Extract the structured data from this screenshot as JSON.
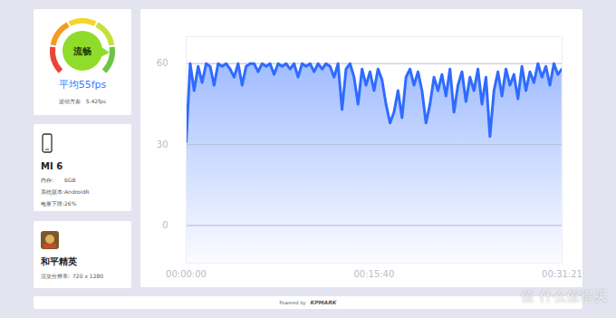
{
  "chart_data": {
    "type": "line",
    "color": "#2f6bff",
    "grid": true,
    "x": [
      0,
      20,
      40,
      60,
      80,
      100,
      120,
      140,
      160,
      180,
      200,
      220,
      240,
      260,
      280,
      300,
      320,
      340,
      360,
      380,
      400,
      420,
      440,
      460,
      480,
      500,
      520,
      540,
      560,
      580,
      600,
      620,
      640,
      660,
      680,
      700,
      720,
      740,
      760,
      780,
      800,
      820,
      840,
      860,
      880,
      900,
      920,
      940,
      960,
      980,
      1000,
      1020,
      1040,
      1060,
      1080,
      1100,
      1120,
      1140,
      1160,
      1180,
      1200,
      1220,
      1240,
      1260,
      1280,
      1300,
      1320,
      1340,
      1360,
      1380,
      1400,
      1420,
      1440,
      1460,
      1480,
      1500,
      1520,
      1540,
      1560,
      1580,
      1600,
      1620,
      1640,
      1660,
      1680,
      1700,
      1720,
      1740,
      1760,
      1780,
      1800,
      1820,
      1840,
      1860,
      1880
    ],
    "values": [
      31,
      60,
      50,
      59,
      53,
      60,
      59,
      52,
      60,
      59,
      60,
      58,
      55,
      60,
      52,
      59,
      60,
      60,
      57,
      60,
      59,
      60,
      56,
      60,
      59,
      60,
      58,
      60,
      55,
      60,
      59,
      60,
      57,
      60,
      58,
      60,
      59,
      55,
      60,
      43,
      58,
      60,
      55,
      45,
      58,
      52,
      57,
      50,
      58,
      54,
      45,
      38,
      42,
      50,
      40,
      55,
      58,
      52,
      57,
      50,
      38,
      45,
      55,
      50,
      56,
      48,
      58,
      42,
      52,
      57,
      46,
      55,
      50,
      58,
      45,
      55,
      33,
      50,
      57,
      48,
      58,
      52,
      56,
      47,
      59,
      50,
      57,
      53,
      60,
      55,
      59,
      52,
      60,
      56,
      58
    ],
    "xlim": [
      0,
      1881
    ],
    "xticks": [
      {
        "value": 0,
        "label": "00:00:00"
      },
      {
        "value": 940,
        "label": "00:15:40"
      },
      {
        "value": 1881,
        "label": "00:31:21"
      }
    ],
    "ylim": [
      -14,
      70
    ],
    "yticks": [
      0,
      30,
      60
    ]
  },
  "summary": {
    "status": "流畅",
    "average": "平均55fps",
    "variance_label": "波动方差",
    "variance": "5.42fps"
  },
  "device": {
    "name": "MI 6",
    "rows": [
      [
        "内存:",
        "6GB"
      ],
      [
        "系统版本:",
        "AndroidR"
      ],
      [
        "电量下降:",
        "26%"
      ]
    ]
  },
  "game": {
    "name": "和平精英",
    "rows": [
      [
        "渲染分辨率:",
        "720 x 1280"
      ]
    ]
  },
  "footer": {
    "powered": "Powered by",
    "brand": "KPMARK"
  },
  "watermark": "值 什么值得买"
}
